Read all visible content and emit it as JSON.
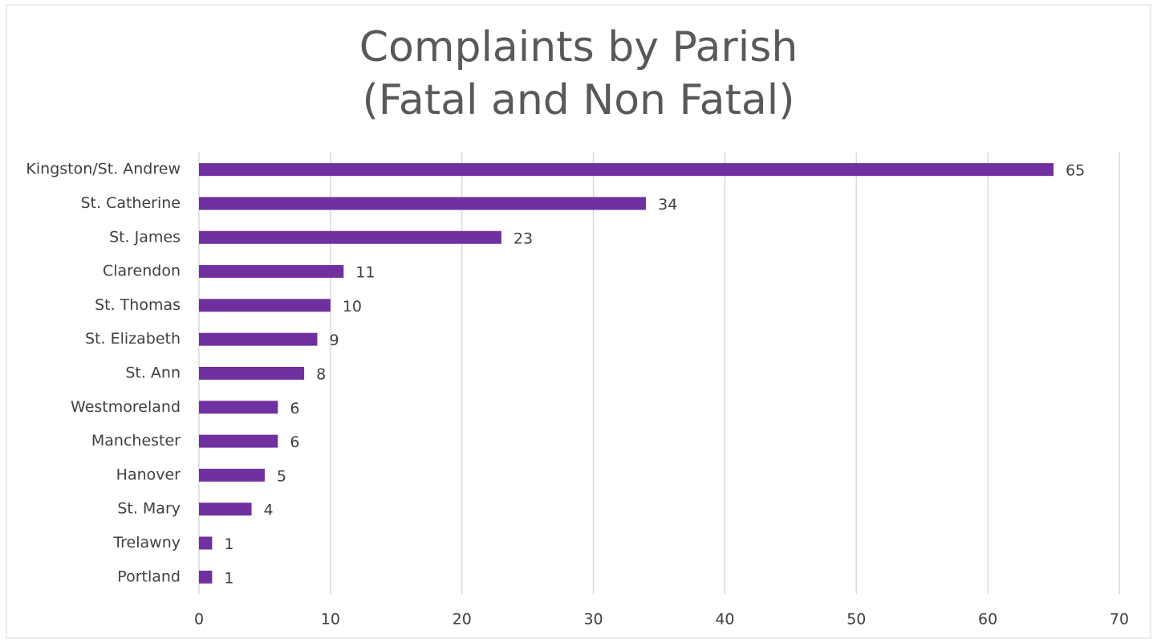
{
  "chart_data": {
    "type": "barh",
    "title": [
      "Complaints by Parish",
      "(Fatal and Non Fatal)"
    ],
    "categories": [
      "Kingston/St. Andrew",
      "St. Catherine",
      "St. James",
      "Clarendon",
      "St. Thomas",
      "St. Elizabeth",
      "St. Ann",
      "Westmoreland",
      "Manchester",
      "Hanover",
      "St. Mary",
      "Trelawny",
      "Portland"
    ],
    "values": [
      65,
      34,
      23,
      11,
      10,
      9,
      8,
      6,
      6,
      5,
      4,
      1,
      1
    ],
    "color": "#7030a0",
    "xlim": [
      0,
      70
    ],
    "xticks": [
      0,
      10,
      20,
      30,
      40,
      50,
      60,
      70
    ],
    "grid": true
  }
}
